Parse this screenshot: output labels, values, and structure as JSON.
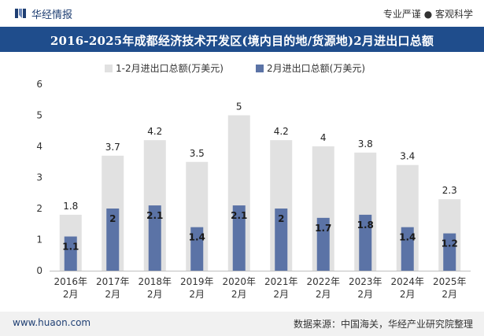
{
  "header": {
    "brand_name": "华经情报",
    "tagline": "专业严谨 ● 客观科学",
    "title": "2016-2025年成都经济技术开发区(境内目的地/货源地)2月进出口总额"
  },
  "footer": {
    "website": "www.huaon.com",
    "source": "数据来源：中国海关，华经产业研究院整理"
  },
  "chart_data": {
    "type": "bar",
    "title": "2016-2025年成都经济技术开发区(境内目的地/货源地)2月进出口总额",
    "categories": [
      "2016年\n2月",
      "2017年\n2月",
      "2018年\n2月",
      "2019年\n2月",
      "2020年\n2月",
      "2021年\n2月",
      "2022年\n2月",
      "2023年\n2月",
      "2024年\n2月",
      "2025年\n2月"
    ],
    "series": [
      {
        "name": "1-2月进出口总额(万美元)",
        "values": [
          1.8,
          3.7,
          4.2,
          3.5,
          5,
          4.2,
          4,
          3.8,
          3.4,
          2.3
        ],
        "color": "#e1e1e1"
      },
      {
        "name": "2月进出口总额(万美元)",
        "values": [
          1.1,
          2,
          2.1,
          1.4,
          2.1,
          2,
          1.7,
          1.8,
          1.4,
          1.2
        ],
        "color": "#5b73a6"
      }
    ],
    "ylim": [
      0,
      6
    ],
    "yticks": [
      0,
      1,
      2,
      3,
      4,
      5,
      6
    ],
    "legend_position": "top-center",
    "grid": false
  }
}
